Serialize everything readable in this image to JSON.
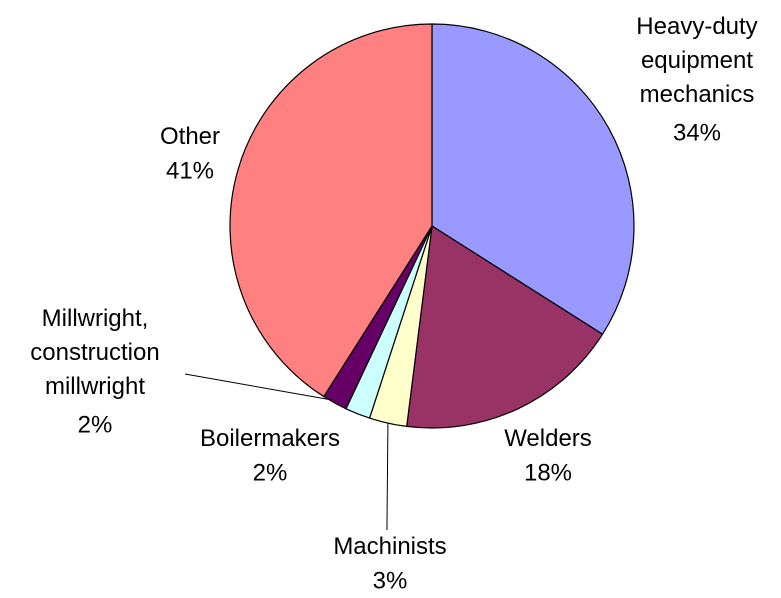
{
  "chart_data": {
    "type": "pie",
    "categories": [
      "Heavy-duty equipment mechanics",
      "Welders",
      "Machinists",
      "Boilermakers",
      "Millwright, construction millwright",
      "Other"
    ],
    "values": [
      34,
      18,
      3,
      2,
      2,
      41
    ],
    "value_labels": [
      "34%",
      "18%",
      "3%",
      "2%",
      "2%",
      "41%"
    ],
    "colors": [
      "#9999ff",
      "#993366",
      "#ffffcc",
      "#ccffff",
      "#660066",
      "#ff8080"
    ]
  }
}
